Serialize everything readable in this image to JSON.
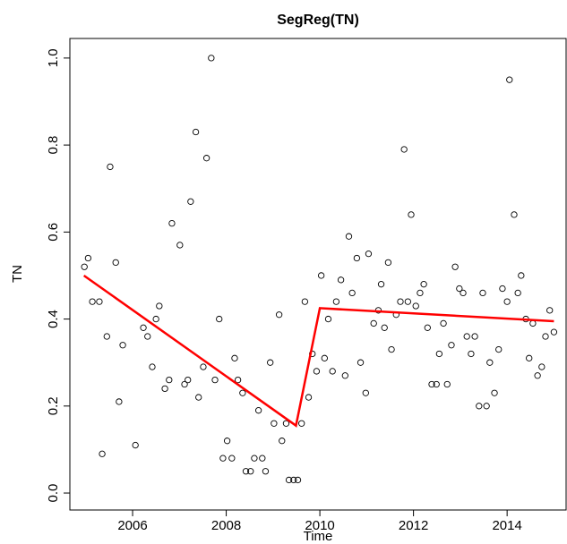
{
  "chart_data": {
    "type": "scatter",
    "title": "SegReg(TN)",
    "xlabel": "Time",
    "ylabel": "TN",
    "xlim": [
      2004.66,
      2015.26
    ],
    "ylim": [
      -0.039,
      1.045
    ],
    "xticks": [
      2006,
      2008,
      2010,
      2012,
      2014
    ],
    "yticks": [
      {
        "value": 0,
        "label": "0.0"
      },
      0.2,
      0.4,
      0.6,
      0.8,
      {
        "value": 1,
        "label": "1.0"
      }
    ],
    "series": [
      {
        "type": "scatter",
        "color": "#000000",
        "x": [
          2004.97,
          2005.05,
          2005.14,
          2005.29,
          2005.35,
          2005.45,
          2005.52,
          2005.64,
          2005.71,
          2005.79,
          2006.06,
          2006.23,
          2006.32,
          2006.42,
          2006.5,
          2006.57,
          2006.69,
          2006.78,
          2006.84,
          2007.01,
          2007.11,
          2007.18,
          2007.24,
          2007.35,
          2007.41,
          2007.51,
          2007.58,
          2007.68,
          2007.76,
          2007.85,
          2007.93,
          2008.02,
          2008.12,
          2008.18,
          2008.25,
          2008.35,
          2008.42,
          2008.52,
          2008.6,
          2008.69,
          2008.77,
          2008.84,
          2008.94,
          2009.02,
          2009.13,
          2009.19,
          2009.28,
          2009.34,
          2009.44,
          2009.53,
          2009.61,
          2009.68,
          2009.76,
          2009.84,
          2009.93,
          2010.03,
          2010.1,
          2010.18,
          2010.27,
          2010.35,
          2010.45,
          2010.54,
          2010.62,
          2010.69,
          2010.79,
          2010.87,
          2010.98,
          2011.04,
          2011.15,
          2011.25,
          2011.31,
          2011.38,
          2011.46,
          2011.53,
          2011.63,
          2011.72,
          2011.8,
          2011.88,
          2011.95,
          2012.05,
          2012.14,
          2012.22,
          2012.3,
          2012.39,
          2012.49,
          2012.55,
          2012.64,
          2012.72,
          2012.81,
          2012.89,
          2012.98,
          2013.06,
          2013.14,
          2013.23,
          2013.31,
          2013.4,
          2013.48,
          2013.56,
          2013.63,
          2013.73,
          2013.82,
          2013.9,
          2014.0,
          2014.05,
          2014.15,
          2014.23,
          2014.3,
          2014.4,
          2014.47,
          2014.55,
          2014.65,
          2014.74,
          2014.82,
          2014.91,
          2015.0
        ],
        "values": [
          0.52,
          0.54,
          0.44,
          0.44,
          0.09,
          0.36,
          0.75,
          0.53,
          0.21,
          0.34,
          0.11,
          0.38,
          0.36,
          0.29,
          0.4,
          0.43,
          0.24,
          0.26,
          0.62,
          0.57,
          0.25,
          0.26,
          0.67,
          0.83,
          0.22,
          0.29,
          0.77,
          1.0,
          0.26,
          0.4,
          0.08,
          0.12,
          0.08,
          0.31,
          0.26,
          0.23,
          0.05,
          0.05,
          0.08,
          0.19,
          0.08,
          0.05,
          0.3,
          0.16,
          0.41,
          0.12,
          0.16,
          0.03,
          0.03,
          0.03,
          0.16,
          0.44,
          0.22,
          0.32,
          0.28,
          0.5,
          0.31,
          0.4,
          0.28,
          0.44,
          0.49,
          0.27,
          0.59,
          0.46,
          0.54,
          0.3,
          0.23,
          0.55,
          0.39,
          0.42,
          0.48,
          0.38,
          0.53,
          0.33,
          0.41,
          0.44,
          0.79,
          0.44,
          0.64,
          0.43,
          0.46,
          0.48,
          0.38,
          0.25,
          0.25,
          0.32,
          0.39,
          0.25,
          0.34,
          0.52,
          0.47,
          0.46,
          0.36,
          0.32,
          0.36,
          0.2,
          0.46,
          0.2,
          0.3,
          0.23,
          0.33,
          0.47,
          0.44,
          0.95,
          0.64,
          0.46,
          0.5,
          0.4,
          0.31,
          0.39,
          0.27,
          0.29,
          0.36,
          0.42,
          0.37
        ]
      },
      {
        "type": "line",
        "color": "#ff0000",
        "x": [
          2004.96,
          2009.49,
          2010.0,
          2015.0
        ],
        "values": [
          0.5,
          0.155,
          0.425,
          0.395
        ]
      }
    ]
  }
}
